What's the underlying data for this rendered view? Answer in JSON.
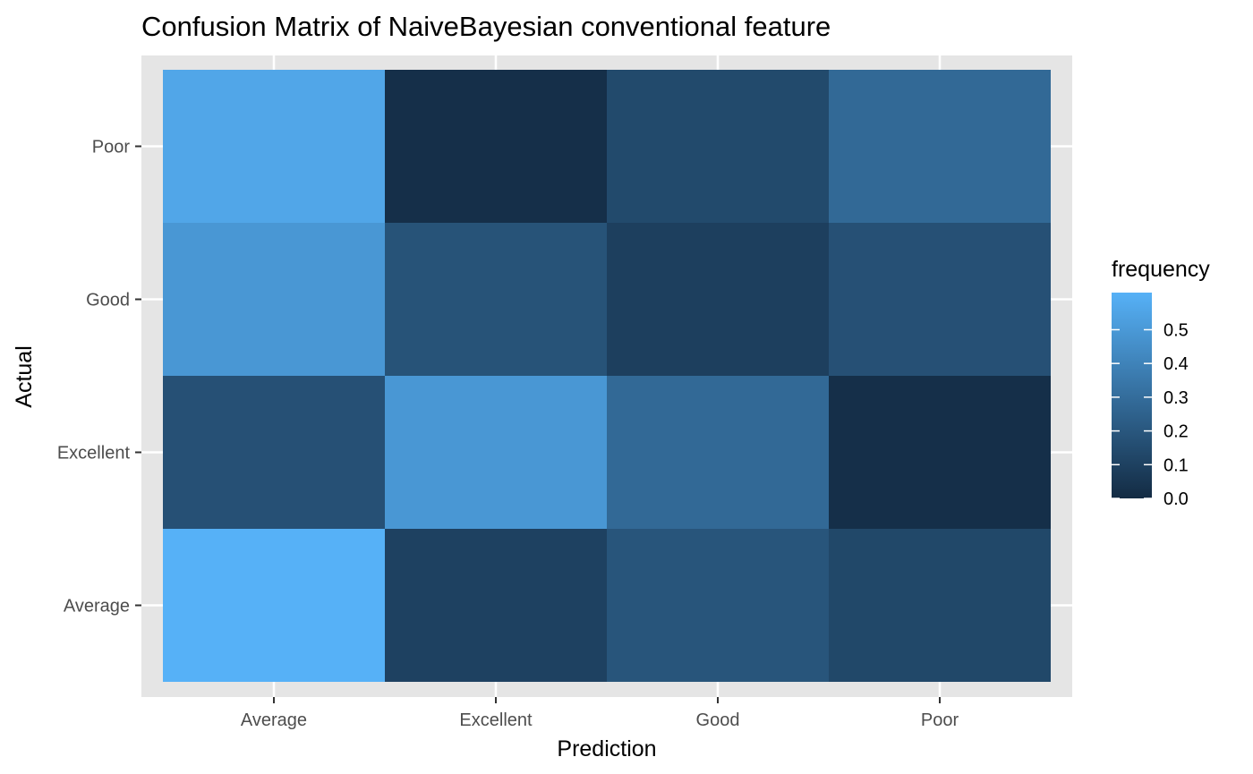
{
  "chart_data": {
    "type": "heatmap",
    "title": "Confusion Matrix of NaiveBayesian conventional feature",
    "xlabel": "Prediction",
    "ylabel": "Actual",
    "x_categories": [
      "Average",
      "Excellent",
      "Good",
      "Poor"
    ],
    "y_categories": [
      "Average",
      "Excellent",
      "Good",
      "Poor"
    ],
    "cells": [
      {
        "actual": "Poor",
        "prediction": "Average",
        "value": 0.56
      },
      {
        "actual": "Poor",
        "prediction": "Excellent",
        "value": 0.02
      },
      {
        "actual": "Poor",
        "prediction": "Good",
        "value": 0.14
      },
      {
        "actual": "Poor",
        "prediction": "Poor",
        "value": 0.28
      },
      {
        "actual": "Good",
        "prediction": "Average",
        "value": 0.49
      },
      {
        "actual": "Good",
        "prediction": "Excellent",
        "value": 0.18
      },
      {
        "actual": "Good",
        "prediction": "Good",
        "value": 0.09
      },
      {
        "actual": "Good",
        "prediction": "Poor",
        "value": 0.17
      },
      {
        "actual": "Excellent",
        "prediction": "Average",
        "value": 0.17
      },
      {
        "actual": "Excellent",
        "prediction": "Excellent",
        "value": 0.49
      },
      {
        "actual": "Excellent",
        "prediction": "Good",
        "value": 0.28
      },
      {
        "actual": "Excellent",
        "prediction": "Poor",
        "value": 0.02
      },
      {
        "actual": "Average",
        "prediction": "Average",
        "value": 0.61
      },
      {
        "actual": "Average",
        "prediction": "Excellent",
        "value": 0.1
      },
      {
        "actual": "Average",
        "prediction": "Good",
        "value": 0.19
      },
      {
        "actual": "Average",
        "prediction": "Poor",
        "value": 0.13
      }
    ],
    "legend": {
      "title": "frequency",
      "breaks": [
        "0.0",
        "0.1",
        "0.2",
        "0.3",
        "0.4",
        "0.5"
      ],
      "range": [
        0,
        0.61
      ],
      "low_color": "#132b43",
      "high_color": "#56b1f7"
    },
    "grid": true,
    "panel_background": "#e5e5e5"
  }
}
